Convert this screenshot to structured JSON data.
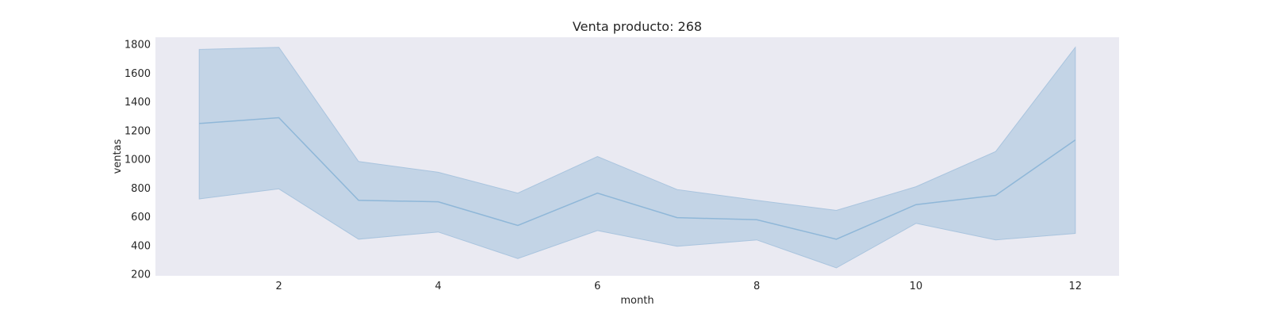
{
  "chart_data": {
    "type": "line",
    "title": "Venta producto: 268",
    "xlabel": "month",
    "ylabel": "ventas",
    "xlim": [
      0.45,
      12.55
    ],
    "ylim": [
      190,
      1850
    ],
    "grid": false,
    "x_ticks": [
      2,
      4,
      6,
      8,
      10,
      12
    ],
    "y_ticks": [
      200,
      400,
      600,
      800,
      1000,
      1200,
      1400,
      1600,
      1800
    ],
    "x": [
      1,
      2,
      3,
      4,
      5,
      6,
      7,
      8,
      9,
      10,
      11,
      12
    ],
    "series": [
      {
        "values": [
          1250,
          1290,
          715,
          705,
          540,
          765,
          595,
          580,
          445,
          685,
          750,
          1135
        ],
        "lower": [
          725,
          795,
          445,
          495,
          310,
          505,
          395,
          440,
          245,
          555,
          440,
          485
        ],
        "upper": [
          1765,
          1780,
          985,
          910,
          765,
          1020,
          790,
          715,
          645,
          810,
          1055,
          1780
        ],
        "color": "#8fb7d8",
        "band_color": "#a9c4de"
      }
    ],
    "colors": {
      "plot_background": "#eaeaf2",
      "text": "#262626"
    }
  }
}
